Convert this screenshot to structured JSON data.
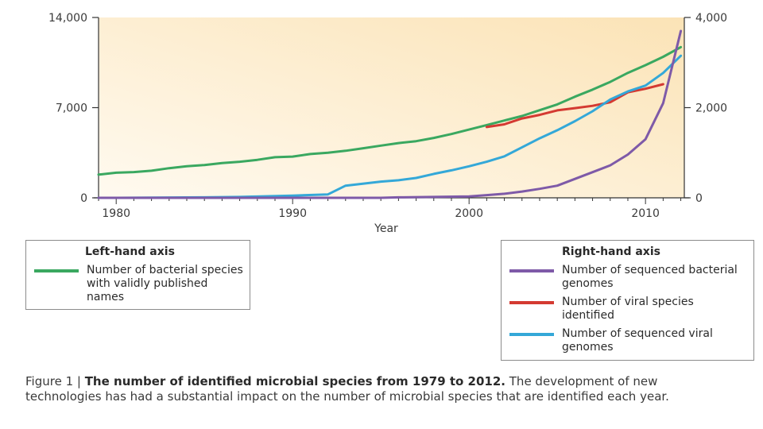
{
  "colors": {
    "bacterial_species": "#3aa860",
    "bacterial_genomes": "#7e5aa8",
    "viral_species": "#d43a32",
    "viral_genomes": "#34a8d8",
    "plot_bg_light": "#fffaf0",
    "plot_bg_dark": "#fbe3b6"
  },
  "chart_data": {
    "type": "line",
    "title": "",
    "xlabel": "Year",
    "xlim": [
      1979,
      2012.2
    ],
    "x_ticks": [
      1980,
      1990,
      2000,
      2010
    ],
    "left_axis": {
      "ylim": [
        0,
        14000
      ],
      "ticks": [
        0,
        7000,
        14000
      ],
      "tick_labels": [
        "0",
        "7,000",
        "14,000"
      ]
    },
    "right_axis": {
      "ylim": [
        0,
        4000
      ],
      "ticks": [
        0,
        2000,
        4000
      ],
      "tick_labels": [
        "0",
        "2,000",
        "4,000"
      ]
    },
    "series": [
      {
        "name": "Number of bacterial species with validly published names",
        "axis": "left",
        "color_key": "bacterial_species",
        "x": [
          1979,
          1980,
          1981,
          1982,
          1983,
          1984,
          1985,
          1986,
          1987,
          1988,
          1989,
          1990,
          1991,
          1992,
          1993,
          1994,
          1995,
          1996,
          1997,
          1998,
          1999,
          2000,
          2001,
          2002,
          2003,
          2004,
          2005,
          2006,
          2007,
          2008,
          2009,
          2010,
          2011,
          2012
        ],
        "y": [
          1800,
          1950,
          2000,
          2100,
          2300,
          2450,
          2550,
          2700,
          2800,
          2950,
          3150,
          3200,
          3400,
          3500,
          3650,
          3850,
          4050,
          4250,
          4400,
          4650,
          4950,
          5300,
          5650,
          6000,
          6350,
          6800,
          7250,
          7850,
          8400,
          9000,
          9700,
          10300,
          10950,
          11700
        ]
      },
      {
        "name": "Number of viral species identified",
        "axis": "right",
        "color_key": "viral_species",
        "x": [
          2001,
          2002,
          2003,
          2004,
          2005,
          2006,
          2007,
          2008,
          2009,
          2010,
          2011
        ],
        "y": [
          1570,
          1630,
          1760,
          1840,
          1940,
          1990,
          2040,
          2120,
          2340,
          2420,
          2520
        ]
      },
      {
        "name": "Number of sequenced viral genomes",
        "axis": "right",
        "color_key": "viral_genomes",
        "x": [
          1979,
          1980,
          1985,
          1987,
          1990,
          1992,
          1993,
          1995,
          1996,
          1997,
          1998,
          1999,
          2000,
          2001,
          2002,
          2003,
          2004,
          2005,
          2006,
          2007,
          2008,
          2009,
          2010,
          2011,
          2012
        ],
        "y": [
          0,
          0,
          10,
          20,
          50,
          75,
          270,
          360,
          390,
          440,
          530,
          610,
          700,
          800,
          920,
          1120,
          1320,
          1500,
          1700,
          1920,
          2180,
          2360,
          2490,
          2770,
          3150
        ]
      },
      {
        "name": "Number of sequenced bacterial genomes",
        "axis": "right",
        "color_key": "bacterial_genomes",
        "x": [
          1979,
          1990,
          1995,
          1996,
          1998,
          2000,
          2001,
          2002,
          2003,
          2004,
          2005,
          2006,
          2007,
          2008,
          2009,
          2010,
          2011,
          2012
        ],
        "y": [
          0,
          0,
          0,
          10,
          20,
          30,
          60,
          90,
          140,
          200,
          270,
          420,
          570,
          720,
          960,
          1300,
          2100,
          3700
        ]
      }
    ]
  },
  "legend_left": {
    "title": "Left-hand axis",
    "items": [
      {
        "label": "Number of bacterial species with validly published names",
        "color_key": "bacterial_species"
      }
    ]
  },
  "legend_right": {
    "title": "Right-hand axis",
    "items": [
      {
        "label": "Number of sequenced bacterial genomes",
        "color_key": "bacterial_genomes"
      },
      {
        "label": "Number of viral species identified",
        "color_key": "viral_species"
      },
      {
        "label": "Number of sequenced viral genomes",
        "color_key": "viral_genomes"
      }
    ]
  },
  "caption": {
    "prefix": "Figure 1 | ",
    "bold": "The number of identified microbial species from 1979 to 2012.",
    "rest": " The development of new technologies has had a substantial impact on the number of microbial species that are identified each year."
  }
}
